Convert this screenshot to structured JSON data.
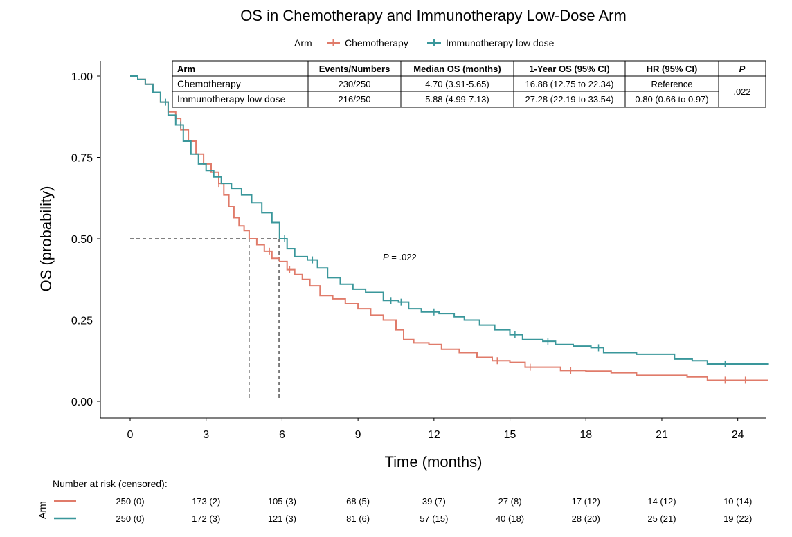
{
  "chart_data": {
    "type": "line",
    "title": "OS in Chemotherapy and Immunotherapy Low-Dose Arm",
    "xlabel": "Time (months)",
    "ylabel": "OS (probability)",
    "xlim": [
      0,
      25.2
    ],
    "ylim": [
      0,
      1.0
    ],
    "x_ticks": [
      "0",
      "3",
      "6",
      "9",
      "12",
      "15",
      "18",
      "21",
      "24"
    ],
    "y_ticks": [
      "0.00",
      "0.25",
      "0.50",
      "0.75",
      "1.00"
    ],
    "grid": false,
    "legend": {
      "title": "Arm",
      "placement": "top",
      "entries": [
        "Chemotherapy",
        "Immunotherapy low dose"
      ]
    },
    "series": [
      {
        "name": "Chemotherapy",
        "color": "#E07B6A",
        "points": [
          [
            0,
            1.0
          ],
          [
            0.3,
            0.99
          ],
          [
            0.6,
            0.975
          ],
          [
            0.9,
            0.95
          ],
          [
            1.2,
            0.92
          ],
          [
            1.5,
            0.89
          ],
          [
            1.8,
            0.87
          ],
          [
            2.0,
            0.835
          ],
          [
            2.3,
            0.8
          ],
          [
            2.6,
            0.76
          ],
          [
            2.9,
            0.73
          ],
          [
            3.2,
            0.705
          ],
          [
            3.5,
            0.67
          ],
          [
            3.7,
            0.635
          ],
          [
            3.9,
            0.6
          ],
          [
            4.1,
            0.565
          ],
          [
            4.3,
            0.54
          ],
          [
            4.5,
            0.525
          ],
          [
            4.7,
            0.5
          ],
          [
            5.0,
            0.482
          ],
          [
            5.3,
            0.462
          ],
          [
            5.6,
            0.44
          ],
          [
            5.9,
            0.43
          ],
          [
            6.2,
            0.405
          ],
          [
            6.5,
            0.39
          ],
          [
            6.8,
            0.375
          ],
          [
            7.1,
            0.355
          ],
          [
            7.5,
            0.325
          ],
          [
            8.0,
            0.315
          ],
          [
            8.5,
            0.3
          ],
          [
            9.0,
            0.285
          ],
          [
            9.5,
            0.265
          ],
          [
            10.0,
            0.25
          ],
          [
            10.5,
            0.22
          ],
          [
            10.8,
            0.19
          ],
          [
            11.2,
            0.18
          ],
          [
            11.8,
            0.175
          ],
          [
            12.3,
            0.16
          ],
          [
            13.0,
            0.15
          ],
          [
            13.7,
            0.135
          ],
          [
            14.3,
            0.125
          ],
          [
            15.0,
            0.12
          ],
          [
            15.6,
            0.105
          ],
          [
            16.3,
            0.105
          ],
          [
            17.0,
            0.095
          ],
          [
            18.0,
            0.093
          ],
          [
            19.0,
            0.088
          ],
          [
            20.0,
            0.08
          ],
          [
            21.0,
            0.08
          ],
          [
            22.0,
            0.075
          ],
          [
            22.8,
            0.065
          ],
          [
            25.2,
            0.065
          ]
        ],
        "censor_x": [
          1.8,
          3.5,
          5.5,
          6.3,
          14.5,
          15.8,
          17.4,
          23.5,
          24.3
        ]
      },
      {
        "name": "Immunotherapy low dose",
        "color": "#3A979B",
        "points": [
          [
            0,
            1.0
          ],
          [
            0.3,
            0.99
          ],
          [
            0.6,
            0.975
          ],
          [
            0.9,
            0.95
          ],
          [
            1.2,
            0.92
          ],
          [
            1.5,
            0.88
          ],
          [
            1.8,
            0.85
          ],
          [
            2.1,
            0.8
          ],
          [
            2.4,
            0.76
          ],
          [
            2.7,
            0.73
          ],
          [
            3.0,
            0.71
          ],
          [
            3.3,
            0.69
          ],
          [
            3.6,
            0.67
          ],
          [
            4.0,
            0.655
          ],
          [
            4.4,
            0.635
          ],
          [
            4.8,
            0.61
          ],
          [
            5.2,
            0.58
          ],
          [
            5.6,
            0.55
          ],
          [
            5.9,
            0.5
          ],
          [
            6.2,
            0.47
          ],
          [
            6.5,
            0.445
          ],
          [
            7.0,
            0.435
          ],
          [
            7.4,
            0.41
          ],
          [
            7.8,
            0.38
          ],
          [
            8.3,
            0.36
          ],
          [
            8.8,
            0.345
          ],
          [
            9.3,
            0.335
          ],
          [
            10.0,
            0.31
          ],
          [
            10.6,
            0.305
          ],
          [
            11.0,
            0.285
          ],
          [
            11.5,
            0.275
          ],
          [
            12.2,
            0.27
          ],
          [
            12.8,
            0.26
          ],
          [
            13.2,
            0.25
          ],
          [
            13.8,
            0.235
          ],
          [
            14.4,
            0.22
          ],
          [
            15.0,
            0.205
          ],
          [
            15.5,
            0.19
          ],
          [
            16.3,
            0.185
          ],
          [
            16.8,
            0.175
          ],
          [
            17.5,
            0.17
          ],
          [
            18.2,
            0.165
          ],
          [
            18.7,
            0.15
          ],
          [
            20.0,
            0.145
          ],
          [
            21.5,
            0.13
          ],
          [
            22.2,
            0.125
          ],
          [
            22.8,
            0.115
          ],
          [
            25.2,
            0.112
          ]
        ],
        "censor_x": [
          1.4,
          2.0,
          6.1,
          7.2,
          10.3,
          10.7,
          12.0,
          15.2,
          16.5,
          18.5,
          23.5
        ]
      }
    ],
    "median_lines": [
      {
        "series": "Chemotherapy",
        "x": 4.7,
        "y": 0.5
      },
      {
        "series": "Immunotherapy low dose",
        "x": 5.88,
        "y": 0.5
      }
    ],
    "annotation": {
      "p_label": "P",
      "p_text": " = .022",
      "x": 10.5,
      "y": 0.445
    },
    "table": {
      "headers": [
        "Arm",
        "Events/Numbers",
        "Median OS (months)",
        "1-Year OS (95% CI)",
        "HR (95% CI)",
        "P"
      ],
      "rows": [
        [
          "Chemotherapy",
          "230/250",
          "4.70 (3.91-5.65)",
          "16.88 (12.75 to 22.34)",
          "Reference"
        ],
        [
          "Immunotherapy low dose",
          "216/250",
          "5.88 (4.99-7.13)",
          "27.28 (22.19 to 33.54)",
          "0.80 (0.66 to 0.97)"
        ]
      ],
      "p_value": ".022"
    },
    "risk_table": {
      "title": "Number at risk (censored):",
      "ylabel": "Arm",
      "times": [
        0,
        3,
        6,
        9,
        12,
        15,
        18,
        21,
        24
      ],
      "rows": [
        {
          "color": "#E07B6A",
          "values": [
            "250 (0)",
            "173 (2)",
            "105 (3)",
            "68 (5)",
            "39 (7)",
            "27 (8)",
            "17 (12)",
            "14 (12)",
            "10 (14)"
          ]
        },
        {
          "color": "#3A979B",
          "values": [
            "250 (0)",
            "172 (3)",
            "121 (3)",
            "81 (6)",
            "57 (15)",
            "40 (18)",
            "28 (20)",
            "25 (21)",
            "19 (22)"
          ]
        }
      ]
    }
  }
}
